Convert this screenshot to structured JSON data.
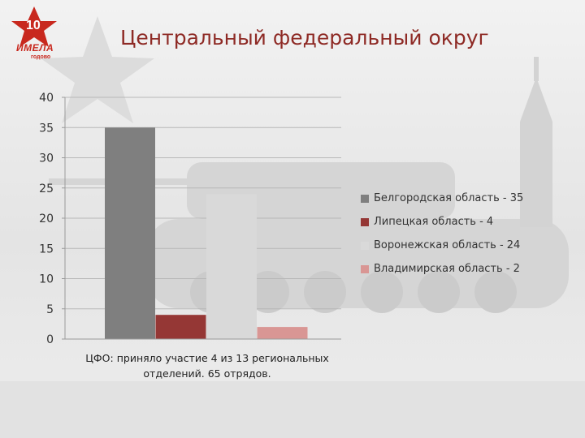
{
  "slide": {
    "title": "Центральный федеральный округ",
    "logo_text": "ИМЕЛА",
    "logo_sub": "годово",
    "logo_number": "10",
    "colors": {
      "title": "#8e2a25",
      "logo": "#c8281e"
    }
  },
  "chart_data": {
    "type": "bar",
    "categories": [
      "ЦФО: приняло участие 4 из 13 региональных отделений. 65 отрядов."
    ],
    "xlabel": "ЦФО: приняло участие 4 из 13 региональных отделений. 65 отрядов.",
    "ylabel": "",
    "ylim": [
      0,
      40
    ],
    "yticks": [
      0,
      5,
      10,
      15,
      20,
      25,
      30,
      35,
      40
    ],
    "grid": true,
    "legend_position": "right",
    "series": [
      {
        "name": "Белгородская область - 35",
        "values": [
          35
        ],
        "color": "#7f7f7f"
      },
      {
        "name": "Липецкая область - 4",
        "values": [
          4
        ],
        "color": "#953735"
      },
      {
        "name": "Воронежская область - 24",
        "values": [
          24
        ],
        "color": "#d9d9d9"
      },
      {
        "name": "Владимирская область - 2",
        "values": [
          2
        ],
        "color": "#d99694"
      }
    ]
  }
}
